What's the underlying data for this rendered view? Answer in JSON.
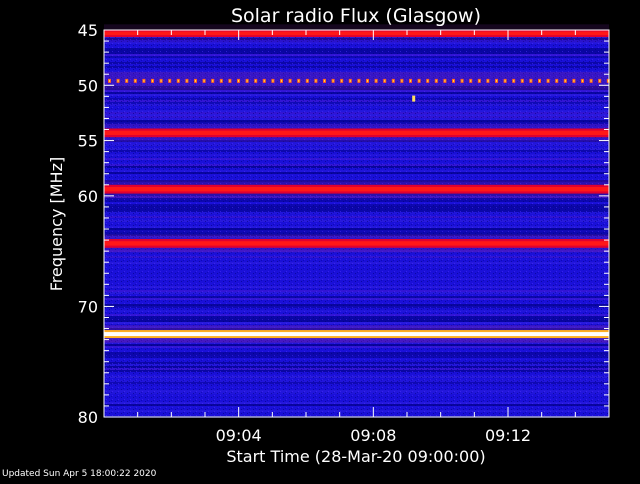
{
  "chart_data": {
    "type": "heatmap",
    "title": "Solar radio Flux (Glasgow)",
    "xlabel": "Start Time (28-Mar-20 09:00:00)",
    "ylabel": "Frequency [MHz]",
    "x_range_minutes": [
      0,
      15
    ],
    "y_range_mhz": [
      45,
      80
    ],
    "y_axis_reversed": true,
    "x_ticks": [
      {
        "minute": 4,
        "label": "09:04"
      },
      {
        "minute": 8,
        "label": "09:08"
      },
      {
        "minute": 12,
        "label": "09:12"
      }
    ],
    "y_ticks": [
      {
        "mhz": 45,
        "label": "45"
      },
      {
        "mhz": 50,
        "label": "50"
      },
      {
        "mhz": 55,
        "label": "55"
      },
      {
        "mhz": 60,
        "label": "60"
      },
      {
        "mhz": 70,
        "label": "70"
      },
      {
        "mhz": 80,
        "label": "80"
      }
    ],
    "y_minor_ticks_mhz": [
      46,
      47,
      48,
      49,
      51,
      52,
      53,
      54,
      56,
      57,
      58,
      59,
      61,
      62,
      63,
      64,
      65,
      66,
      67,
      68,
      69,
      71,
      72,
      73,
      74,
      75,
      76,
      77,
      78,
      79
    ],
    "x_minor_ticks_minutes": [
      1,
      2,
      3,
      5,
      6,
      7,
      9,
      10,
      11,
      13,
      14
    ],
    "colormap": [
      "#000080",
      "#1010c8",
      "#3020e0",
      "#c00060",
      "#ff1010",
      "#ffd020",
      "#ffffff"
    ],
    "background_color": "#1a10d8",
    "emission_lines": [
      {
        "mhz": 45.3,
        "intensity": 0.55
      },
      {
        "mhz": 49.6,
        "intensity": 0.9,
        "dotted": true
      },
      {
        "mhz": 54.3,
        "intensity": 0.78
      },
      {
        "mhz": 59.4,
        "intensity": 0.8
      },
      {
        "mhz": 64.3,
        "intensity": 0.8
      },
      {
        "mhz": 72.5,
        "intensity": 1.0
      }
    ],
    "spikes": [
      {
        "minute": 9.2,
        "mhz": 51.2
      }
    ]
  },
  "footer": {
    "updated": "Updated Sun Apr  5 18:00:22 2020"
  }
}
